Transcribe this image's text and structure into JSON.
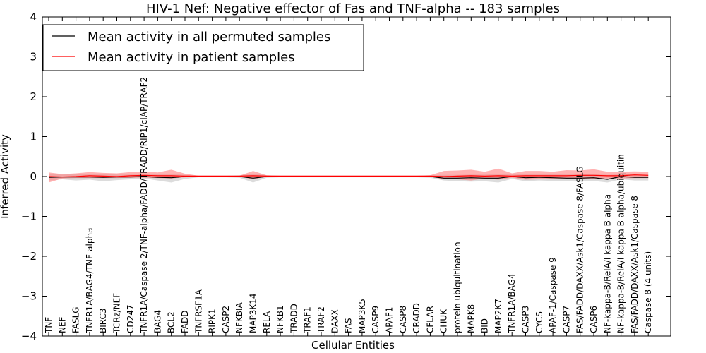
{
  "chart_data": {
    "type": "line",
    "title": "HIV-1 Nef: Negative effector of Fas and TNF-alpha -- 183 samples",
    "xlabel": "Cellular Entities",
    "ylabel": "Inferred Activity",
    "ylim": [
      -4,
      4
    ],
    "yticks": [
      -4,
      -3,
      -2,
      -1,
      0,
      1,
      2,
      3,
      4
    ],
    "ytick_labels": [
      "−4",
      "−3",
      "−2",
      "−1",
      "0",
      "1",
      "2",
      "3",
      "4"
    ],
    "grid": false,
    "legend_position": "top-left",
    "categories": [
      "TNF",
      "NEF",
      "FASLG",
      "TNFR1A/BAG4/TNF-alpha",
      "BIRC3",
      "TCRz/NEF",
      "CD247",
      "TNFR1A/Caspase 2/TNF-alpha/FADD/TRADD/RIP1/cIAP/TRAF2",
      "BAG4",
      "BCL2",
      "FADD",
      "TNFRSF1A",
      "RIPK1",
      "CASP2",
      "NFKBIA",
      "MAP3K14",
      "RELA",
      "NFKB1",
      "TRADD",
      "TRAF1",
      "TRAF2",
      "DAXX",
      "FAS",
      "MAP3K5",
      "CASP9",
      "APAF1",
      "CASP8",
      "CRADD",
      "CFLAR",
      "CHUK",
      "protein ubiquitination",
      "MAPK8",
      "BID",
      "MAP2K7",
      "TNFR1A/BAG4",
      "CASP3",
      "CYCS",
      "APAF-1/Caspase 9",
      "CASP7",
      "FAS/FADD/DAXX/Ask1/Caspase 8/FASLG",
      "CASP6",
      "NF-kappa-B/RelA/I kappa B alpha",
      "NF-kappa-B/RelA/I kappa B alpha/ubiquitin",
      "FAS/FADD/DAXX/Ask1/Caspase 8",
      "Caspase 8 (4 units)"
    ],
    "series": [
      {
        "name": "Mean activity in all permuted samples",
        "color": "#000000",
        "band_color": "#c0c0c0",
        "values": [
          -0.02,
          -0.01,
          -0.01,
          -0.01,
          -0.02,
          -0.01,
          -0.01,
          0.0,
          -0.02,
          -0.03,
          0.0,
          0.0,
          0.0,
          0.0,
          0.0,
          -0.04,
          0.0,
          0.0,
          0.0,
          0.0,
          0.0,
          0.0,
          0.0,
          0.0,
          0.0,
          0.0,
          0.0,
          0.0,
          0.0,
          -0.04,
          -0.04,
          -0.03,
          -0.04,
          -0.04,
          0.0,
          -0.03,
          -0.02,
          -0.03,
          -0.04,
          -0.04,
          -0.03,
          -0.07,
          0.0,
          -0.02,
          -0.02
        ],
        "band_low": [
          -0.1,
          -0.07,
          -0.1,
          -0.08,
          -0.12,
          -0.09,
          -0.07,
          -0.05,
          -0.1,
          -0.15,
          -0.06,
          -0.02,
          -0.02,
          -0.02,
          -0.03,
          -0.15,
          -0.03,
          -0.02,
          -0.02,
          -0.02,
          -0.02,
          -0.02,
          -0.02,
          -0.02,
          -0.02,
          -0.02,
          -0.02,
          -0.02,
          -0.03,
          -0.1,
          -0.12,
          -0.13,
          -0.12,
          -0.15,
          -0.06,
          -0.12,
          -0.1,
          -0.11,
          -0.12,
          -0.13,
          -0.11,
          -0.15,
          -0.07,
          -0.1,
          -0.1
        ],
        "band_high": [
          0.06,
          0.05,
          0.06,
          0.07,
          0.07,
          0.05,
          0.05,
          0.05,
          0.06,
          0.07,
          0.04,
          0.02,
          0.02,
          0.02,
          0.03,
          0.07,
          0.03,
          0.02,
          0.02,
          0.02,
          0.02,
          0.02,
          0.02,
          0.02,
          0.02,
          0.02,
          0.02,
          0.02,
          0.03,
          0.04,
          0.04,
          0.05,
          0.05,
          0.06,
          0.05,
          0.06,
          0.06,
          0.06,
          0.06,
          0.05,
          0.06,
          0.04,
          0.06,
          0.05,
          0.05
        ]
      },
      {
        "name": "Mean activity in patient samples",
        "color": "#ff0000",
        "band_color": "#ff7f7f",
        "values": [
          0.0,
          -0.01,
          0.0,
          0.02,
          0.01,
          0.0,
          0.02,
          0.03,
          0.02,
          0.02,
          0.01,
          0.01,
          0.01,
          0.01,
          0.01,
          0.02,
          0.01,
          0.01,
          0.01,
          0.01,
          0.01,
          0.01,
          0.01,
          0.01,
          0.01,
          0.01,
          0.01,
          0.01,
          0.01,
          0.0,
          0.01,
          0.02,
          0.01,
          0.02,
          0.01,
          0.02,
          0.02,
          0.02,
          0.02,
          0.03,
          0.03,
          0.02,
          0.02,
          0.04,
          0.03
        ],
        "band_low": [
          -0.15,
          -0.05,
          -0.04,
          -0.04,
          -0.04,
          -0.04,
          -0.03,
          -0.03,
          -0.04,
          -0.05,
          -0.02,
          0.0,
          0.0,
          0.0,
          0.0,
          -0.07,
          0.0,
          0.0,
          0.0,
          0.0,
          0.0,
          0.0,
          0.0,
          0.0,
          0.0,
          0.0,
          0.0,
          0.0,
          0.0,
          -0.07,
          -0.07,
          -0.1,
          -0.05,
          -0.08,
          -0.03,
          -0.08,
          -0.07,
          -0.07,
          -0.07,
          -0.06,
          -0.06,
          -0.05,
          -0.05,
          -0.04,
          -0.04
        ],
        "band_high": [
          0.1,
          0.06,
          0.08,
          0.11,
          0.09,
          0.08,
          0.11,
          0.13,
          0.1,
          0.17,
          0.07,
          0.02,
          0.02,
          0.02,
          0.02,
          0.14,
          0.03,
          0.02,
          0.02,
          0.02,
          0.02,
          0.02,
          0.02,
          0.02,
          0.02,
          0.02,
          0.02,
          0.02,
          0.03,
          0.14,
          0.15,
          0.17,
          0.12,
          0.2,
          0.08,
          0.14,
          0.14,
          0.12,
          0.16,
          0.15,
          0.18,
          0.12,
          0.12,
          0.13,
          0.12
        ]
      }
    ]
  }
}
